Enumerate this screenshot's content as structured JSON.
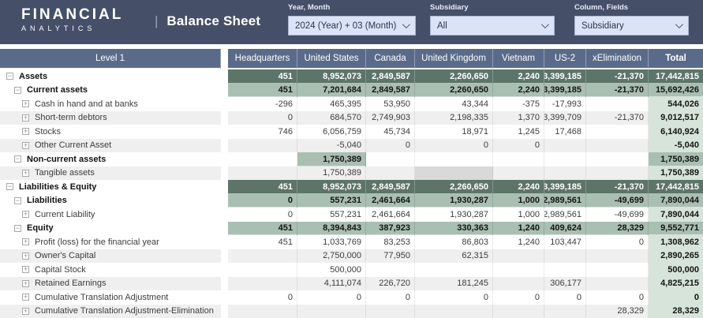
{
  "header": {
    "logo_line1": "FINANCIAL",
    "logo_line2": "ANALYTICS",
    "divider": "|",
    "title": "Balance Sheet",
    "filters": [
      {
        "label": "Year, Month",
        "value": "2024 (Year) + 03 (Month)"
      },
      {
        "label": "Subsidiary",
        "value": "All"
      },
      {
        "label": "Column, Fields",
        "value": "Subsidiary"
      }
    ]
  },
  "table": {
    "columns": [
      "Level 1",
      "Headquarters",
      "United States",
      "Canada",
      "United Kingdom",
      "Vietnam",
      "US-2",
      "xElimination",
      "Total"
    ],
    "rows": [
      {
        "label": "Assets",
        "level": 0,
        "icon": "minus",
        "style": "grand",
        "values": [
          "451",
          "8,952,073",
          "2,849,587",
          "2,260,650",
          "2,240",
          "3,399,185",
          "-21,370",
          "17,442,815"
        ]
      },
      {
        "label": "Current assets",
        "level": 1,
        "icon": "minus",
        "style": "subtotal",
        "values": [
          "451",
          "7,201,684",
          "2,849,587",
          "2,260,650",
          "2,240",
          "3,399,185",
          "-21,370",
          "15,692,426"
        ]
      },
      {
        "label": "Cash in hand and at banks",
        "level": 2,
        "icon": "plus",
        "style": "detail",
        "values": [
          "-296",
          "465,395",
          "53,950",
          "43,344",
          "-375",
          "-17,993",
          "",
          "544,026"
        ]
      },
      {
        "label": "Short-term debtors",
        "level": 2,
        "icon": "plus",
        "style": "detail-alt",
        "values": [
          "0",
          "684,570",
          "2,749,903",
          "2,198,335",
          "1,370",
          "3,399,709",
          "-21,370",
          "9,012,517"
        ]
      },
      {
        "label": "Stocks",
        "level": 2,
        "icon": "plus",
        "style": "detail",
        "values": [
          "746",
          "6,056,759",
          "45,734",
          "18,971",
          "1,245",
          "17,468",
          "",
          "6,140,924"
        ]
      },
      {
        "label": "Other Current Asset",
        "level": 2,
        "icon": "plus",
        "style": "detail-alt",
        "values": [
          "",
          "-5,040",
          "0",
          "0",
          "0",
          "",
          "",
          "-5,040"
        ]
      },
      {
        "label": "Non-current assets",
        "level": 1,
        "icon": "minus",
        "style": "subtotal",
        "values": [
          "",
          "1,750,389",
          "",
          "",
          "",
          "",
          "",
          "1,750,389"
        ]
      },
      {
        "label": "Tangible assets",
        "level": 2,
        "icon": "plus",
        "style": "detail-alt",
        "values": [
          "",
          "1,750,389",
          "",
          "",
          "",
          "",
          "",
          "1,750,389"
        ],
        "highlight_col": 3
      },
      {
        "label": "Liabilities & Equity",
        "level": 0,
        "icon": "minus",
        "style": "grand",
        "values": [
          "451",
          "8,952,073",
          "2,849,587",
          "2,260,650",
          "2,240",
          "3,399,185",
          "-21,370",
          "17,442,815"
        ]
      },
      {
        "label": "Liabilities",
        "level": 1,
        "icon": "minus",
        "style": "subtotal",
        "values": [
          "0",
          "557,231",
          "2,461,664",
          "1,930,287",
          "1,000",
          "2,989,561",
          "-49,699",
          "7,890,044"
        ]
      },
      {
        "label": "Current Liability",
        "level": 2,
        "icon": "plus",
        "style": "detail",
        "values": [
          "0",
          "557,231",
          "2,461,664",
          "1,930,287",
          "1,000",
          "2,989,561",
          "-49,699",
          "7,890,044"
        ]
      },
      {
        "label": "Equity",
        "level": 1,
        "icon": "minus",
        "style": "subtotal",
        "values": [
          "451",
          "8,394,843",
          "387,923",
          "330,363",
          "1,240",
          "409,624",
          "28,329",
          "9,552,771"
        ]
      },
      {
        "label": "Profit (loss) for the financial year",
        "level": 2,
        "icon": "plus",
        "style": "detail",
        "values": [
          "451",
          "1,033,769",
          "83,253",
          "86,803",
          "1,240",
          "103,447",
          "0",
          "1,308,962"
        ]
      },
      {
        "label": "Owner's Capital",
        "level": 2,
        "icon": "plus",
        "style": "detail-alt",
        "values": [
          "",
          "2,750,000",
          "77,950",
          "62,315",
          "",
          "",
          "",
          "2,890,265"
        ]
      },
      {
        "label": "Capital Stock",
        "level": 2,
        "icon": "plus",
        "style": "detail",
        "values": [
          "",
          "500,000",
          "",
          "",
          "",
          "",
          "",
          "500,000"
        ]
      },
      {
        "label": "Retained Earnings",
        "level": 2,
        "icon": "plus",
        "style": "detail-alt",
        "values": [
          "",
          "4,111,074",
          "226,720",
          "181,245",
          "",
          "306,177",
          "",
          "4,825,215"
        ]
      },
      {
        "label": "Cumulative Translation Adjustment",
        "level": 2,
        "icon": "plus",
        "style": "detail",
        "values": [
          "0",
          "0",
          "0",
          "0",
          "0",
          "0",
          "0",
          "0"
        ]
      },
      {
        "label": "Cumulative Translation Adjustment-Elimination",
        "level": 2,
        "icon": "plus",
        "style": "detail-alt",
        "values": [
          "",
          "",
          "",
          "",
          "",
          "",
          "28,329",
          "28,329"
        ]
      }
    ]
  },
  "colors": {
    "bar_bg": "#454f68",
    "thead_bg": "#5a6b8a",
    "grand_bg": "#5d7468",
    "subtotal_bg": "#a9bfb2",
    "total_bg": "#d7e4da",
    "alt_bg": "#efefef",
    "highlight_bg": "#d9d9d9",
    "dropdown_bg": "#dbe3f6"
  }
}
